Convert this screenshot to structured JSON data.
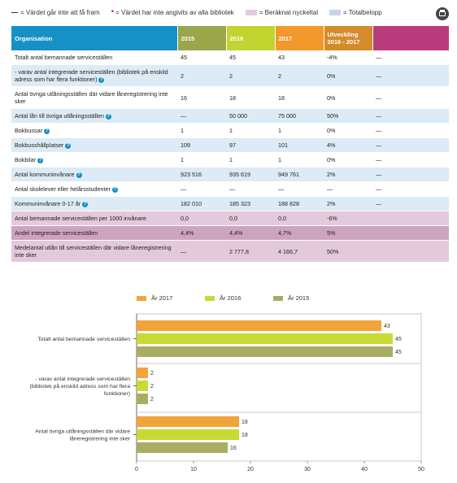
{
  "legend": [
    {
      "kind": "dash",
      "label": "= Värdet går inte att få fram"
    },
    {
      "kind": "star",
      "label": "= Värdet har inte angivits av alla bibliotek"
    },
    {
      "kind": "swatch",
      "color": "#e4c9dc",
      "label": "= Beräknat nyckeltal"
    },
    {
      "kind": "swatch",
      "color": "#c9d3e6",
      "label": "= Totalbelopp"
    }
  ],
  "table": {
    "headers": {
      "org": "Organisation",
      "y2015": "2015",
      "y2016": "2016",
      "y2017": "2017",
      "dev": "Utveckling 2016 - 2017",
      "blank": ""
    },
    "rows": [
      {
        "label": "Totalt antal bemannade serviceställen",
        "v15": "45",
        "v16": "45",
        "v17": "43",
        "dev": "-4%",
        "extra": "—",
        "style": "w",
        "info": false
      },
      {
        "label": "- varav antal integrerade serviceställen (bibliotek på enskild adress som har flera funktioner)",
        "v15": "2",
        "v16": "2",
        "v17": "2",
        "dev": "0%",
        "extra": "—",
        "style": "b",
        "info": true
      },
      {
        "label": "Antal övriga utlåningsställen där vidare låneregistrering inte sker",
        "v15": "16",
        "v16": "18",
        "v17": "18",
        "dev": "0%",
        "extra": "—",
        "style": "w",
        "info": false
      },
      {
        "label": "Antal lån till övriga utlåningsställen",
        "v15": "—",
        "v16": "50 000",
        "v17": "75 000",
        "dev": "50%",
        "extra": "—",
        "style": "b",
        "info": true
      },
      {
        "label": "Bokbussar",
        "v15": "1",
        "v16": "1",
        "v17": "1",
        "dev": "0%",
        "extra": "—",
        "style": "w",
        "info": true
      },
      {
        "label": "Bokbusshållplatser",
        "v15": "109",
        "v16": "97",
        "v17": "101",
        "dev": "4%",
        "extra": "—",
        "style": "b",
        "info": true
      },
      {
        "label": "Bokbilar",
        "v15": "1",
        "v16": "1",
        "v17": "1",
        "dev": "0%",
        "extra": "—",
        "style": "w",
        "info": true
      },
      {
        "label": "Antal kommuninvånare",
        "v15": "923 516",
        "v16": "935 619",
        "v17": "949 761",
        "dev": "2%",
        "extra": "—",
        "style": "b",
        "info": true
      },
      {
        "label": "Antal skolelever eller helårsstudenter",
        "v15": "—",
        "v16": "—",
        "v17": "—",
        "dev": "—",
        "extra": "—",
        "style": "w",
        "info": true
      },
      {
        "label": "Kommuninvånare 0-17 år",
        "v15": "182 010",
        "v16": "185 323",
        "v17": "188 828",
        "dev": "2%",
        "extra": "—",
        "style": "b",
        "info": true
      },
      {
        "label": "Antal bemannade serviceställen per 1000 invånare",
        "v15": "0,0",
        "v16": "0,0",
        "v17": "0,0",
        "dev": "-6%",
        "extra": "",
        "style": "p",
        "info": false
      },
      {
        "label": "Andel integrerade serviceställen",
        "v15": "4,4%",
        "v16": "4,4%",
        "v17": "4,7%",
        "dev": "5%",
        "extra": "",
        "style": "pd",
        "info": false
      },
      {
        "label": "Medelantal utlån till serviceställen där vidare låneregistrering inte sker",
        "v15": "—",
        "v16": "2 777,8",
        "v17": "4 166,7",
        "dev": "50%",
        "extra": "",
        "style": "p",
        "info": false
      }
    ]
  },
  "chart_data": {
    "type": "bar",
    "orientation": "horizontal",
    "categories": [
      "Totalt antal bemannade serviceställen",
      "- varav antal integrerade serviceställen (bibliotek på enskild adress som har flera funktioner)",
      "Antal övriga utlåningsställen där vidare låneregistrering inte sker"
    ],
    "series": [
      {
        "name": "År 2017",
        "color": "#f2a33a",
        "values": [
          43,
          2,
          18
        ]
      },
      {
        "name": "År 2016",
        "color": "#c8da34",
        "values": [
          45,
          2,
          18
        ]
      },
      {
        "name": "År 2015",
        "color": "#a8ad62",
        "values": [
          45,
          2,
          16
        ]
      }
    ],
    "xlim": [
      0,
      50
    ],
    "xticks": [
      0,
      10,
      20,
      30,
      40,
      50
    ],
    "legend_position": "top",
    "grid": false
  }
}
